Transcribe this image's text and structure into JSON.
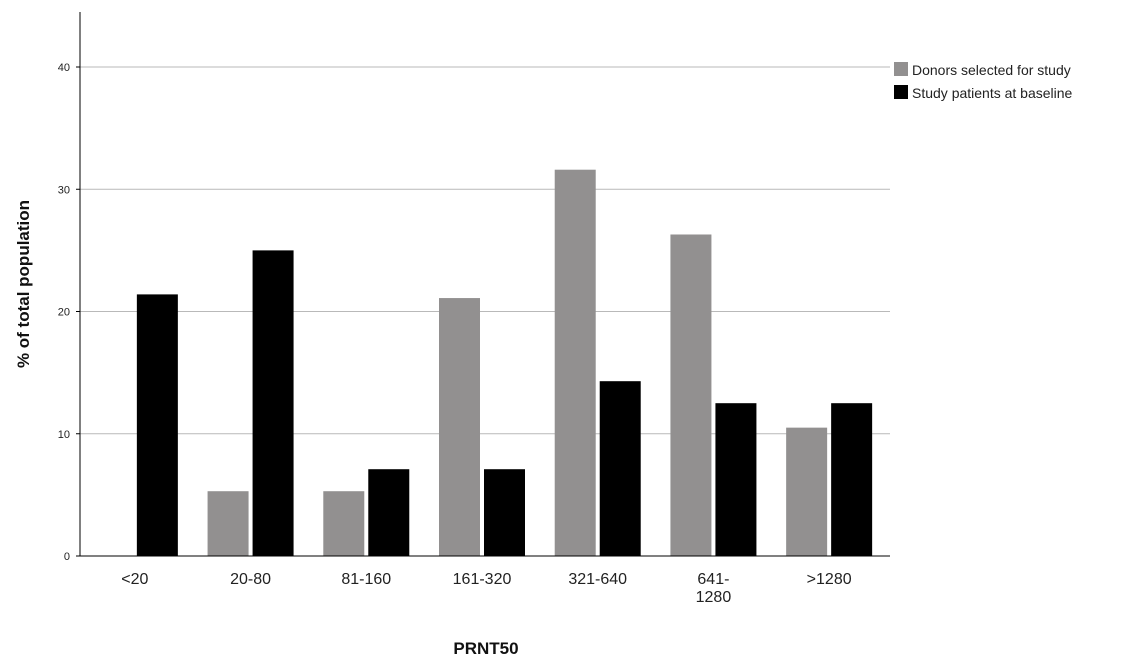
{
  "chart_data": {
    "type": "bar",
    "xlabel": "PRNT50",
    "ylabel": "% of total population",
    "categories": [
      "<20",
      "20-80",
      "81-160",
      "161-320",
      "321-640",
      "641-\n1280",
      ">1280"
    ],
    "series": [
      {
        "name": "Donors selected for study",
        "color": "#929090",
        "values": [
          0,
          5.3,
          5.3,
          21.1,
          31.6,
          26.3,
          10.5
        ]
      },
      {
        "name": "Study patients at baseline",
        "color": "#000000",
        "values": [
          21.4,
          25.0,
          7.1,
          7.1,
          14.3,
          12.5,
          12.5
        ]
      }
    ],
    "yticks": [
      0,
      10,
      20,
      30,
      40
    ],
    "ylim": [
      0,
      44.5
    ],
    "grid": true,
    "legend_position": "top-right"
  }
}
